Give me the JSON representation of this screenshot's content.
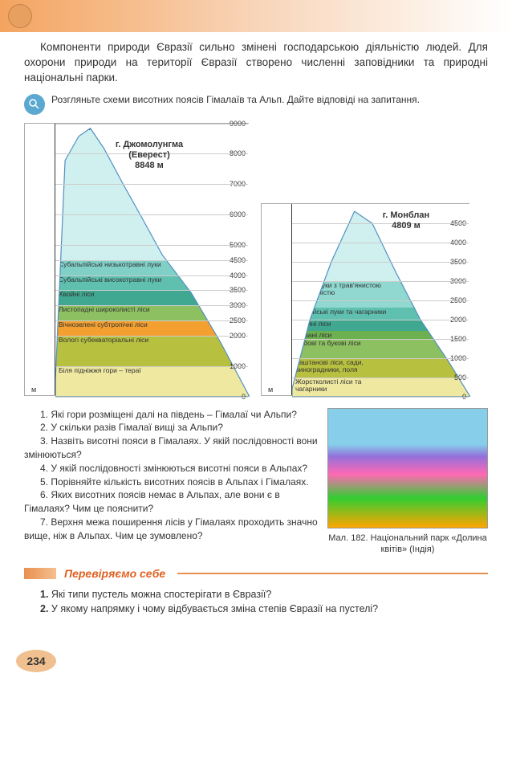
{
  "intro": "Компоненти природи Євразії сильно змінені господарською діяльністю людей. Для охорони природи на території Євразії створено численні заповідники та природні національні парки.",
  "task": "Розгляньте схеми висотних поясів Гімалаїв та Альп. Дайте відповіді на запитання.",
  "chart_left": {
    "peak_name": "г. Джомолунгма (Еверест)",
    "peak_height": "8848 м",
    "y_max": 9000,
    "y_ticks": [
      0,
      1000,
      2000,
      2500,
      3000,
      3500,
      4000,
      4500,
      5000,
      6000,
      7000,
      8000,
      9000
    ],
    "axis_unit": "м",
    "zones": [
      {
        "from": 0,
        "to": 1000,
        "color": "#efe8a0",
        "label": "Біля підніжжя гори – тераї"
      },
      {
        "from": 1000,
        "to": 2000,
        "color": "#b8c040",
        "label": "Вологі субекваторіальні ліси"
      },
      {
        "from": 2000,
        "to": 2500,
        "color": "#f4a030",
        "label": "Вічнозелені субтропічні ліси"
      },
      {
        "from": 2500,
        "to": 3000,
        "color": "#8dc060",
        "label": "Листопадні широколисті ліси"
      },
      {
        "from": 3000,
        "to": 3500,
        "color": "#40a890",
        "label": "Хвойні ліси"
      },
      {
        "from": 3500,
        "to": 4000,
        "color": "#60c0b0",
        "label": "Субальпійські високотравні луки"
      },
      {
        "from": 4000,
        "to": 4500,
        "color": "#80d0c8",
        "label": "Субальпійські низькотравні луки"
      },
      {
        "from": 4500,
        "to": 9000,
        "color": "#d0f0f0",
        "label": "Пояс вічних снігів"
      }
    ]
  },
  "chart_right": {
    "peak_name": "г. Монблан",
    "peak_height": "4809 м",
    "y_max": 5000,
    "y_ticks": [
      0,
      500,
      1000,
      1500,
      2000,
      2500,
      3000,
      3500,
      4000,
      4500
    ],
    "axis_unit": "м",
    "zones": [
      {
        "from": 0,
        "to": 500,
        "color": "#efe8a0",
        "label": "Жорстколисті ліси та чагарники"
      },
      {
        "from": 500,
        "to": 1000,
        "color": "#b8c040",
        "label": "Каштанові ліси, сади, виноградники, поля"
      },
      {
        "from": 1000,
        "to": 1500,
        "color": "#8dc060",
        "label": "Дубові та букові ліси"
      },
      {
        "from": 1500,
        "to": 1700,
        "color": "#6db050",
        "label": "Мішані ліси"
      },
      {
        "from": 1700,
        "to": 2000,
        "color": "#40a890",
        "label": "Хвойні ліси"
      },
      {
        "from": 2000,
        "to": 2300,
        "color": "#60c0b0",
        "label": "Альпійські луки та чагарники"
      },
      {
        "from": 2300,
        "to": 3000,
        "color": "#90d8d0",
        "label": "Гірські луки з трав'янистою рослинністю"
      },
      {
        "from": 3000,
        "to": 5000,
        "color": "#d0f0f0",
        "label": "Пояс вічних снігів"
      }
    ]
  },
  "questions": [
    "1. Які гори розміщені далі на південь – Гімалаї чи Альпи?",
    "2. У скільки разів Гімалаї вищі за Альпи?",
    "3. Назвіть висотні пояси в Гімалаях. У якій послідовності вони змінюються?",
    "4. У якій послідовності змінюються висотні пояси в Альпах?",
    "5. Порівняйте кількість висотних поясів в Альпах і Гімалаях.",
    "6. Яких висотних поясів немає в Альпах, але вони є в Гімалаях? Чим це пояснити?",
    "7. Верхня межа поширення лісів у Гімалаях проходить значно вище, ніж в Альпах. Чим це зумовлено?"
  ],
  "photo_caption": "Мал. 182. Національний парк «Долина квітів» (Індія)",
  "section_header": "Перевіряємо себе",
  "check_questions": [
    "1. Які типи пустель можна спостерігати в Євразії?",
    "2. У якому напрямку і чому відбувається зміна степів Євразії на пустелі?"
  ],
  "page_number": "234"
}
